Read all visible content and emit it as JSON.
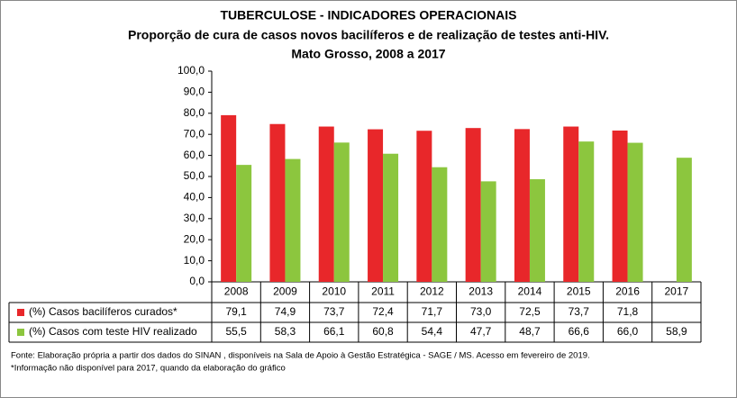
{
  "chart_data": {
    "type": "bar",
    "title": "TUBERCULOSE - INDICADORES OPERACIONAIS",
    "subtitle": "Proporção de cura de casos novos bacilíferos e de realização de testes anti-HIV.",
    "subtitle2": "Mato Grosso, 2008 a 2017",
    "categories": [
      "2008",
      "2009",
      "2010",
      "2011",
      "2012",
      "2013",
      "2014",
      "2015",
      "2016",
      "2017"
    ],
    "series": [
      {
        "name": "(%) Casos bacilíferos curados*",
        "color": "#e8272a",
        "values": [
          79.1,
          74.9,
          73.7,
          72.4,
          71.7,
          73.0,
          72.5,
          73.7,
          71.8,
          null
        ],
        "value_labels": [
          "79,1",
          "74,9",
          "73,7",
          "72,4",
          "71,7",
          "73,0",
          "72,5",
          "73,7",
          "71,8",
          null
        ]
      },
      {
        "name": "(%) Casos com teste HIV realizado",
        "color": "#8cc63e",
        "values": [
          55.5,
          58.3,
          66.1,
          60.8,
          54.4,
          47.7,
          48.7,
          66.6,
          66.0,
          58.9
        ],
        "value_labels": [
          "55,5",
          "58,3",
          "66,1",
          "60,8",
          "54,4",
          "47,7",
          "48,7",
          "66,6",
          "66,0",
          "58,9"
        ]
      }
    ],
    "ylim": [
      0,
      100
    ],
    "yticks": [
      {
        "value": 0,
        "label": "0,0"
      },
      {
        "value": 10,
        "label": "10,0"
      },
      {
        "value": 20,
        "label": "20,0"
      },
      {
        "value": 30,
        "label": "30,0"
      },
      {
        "value": 40,
        "label": "40,0"
      },
      {
        "value": 50,
        "label": "50,0"
      },
      {
        "value": 60,
        "label": "60,0"
      },
      {
        "value": 70,
        "label": "70,0"
      },
      {
        "value": 80,
        "label": "80,0"
      },
      {
        "value": 90,
        "label": "90,0"
      },
      {
        "value": 100,
        "label": "100,0"
      }
    ],
    "grid": false,
    "notes": [
      "Fonte: Elaboração própria a partir dos dados do SINAN , disponíveis na Sala de Apoio à Gestão Estratégica - SAGE / MS. Acesso em fevereiro de 2019.",
      "*Informação não disponível para 2017, quando da elaboração do gráfico"
    ]
  }
}
